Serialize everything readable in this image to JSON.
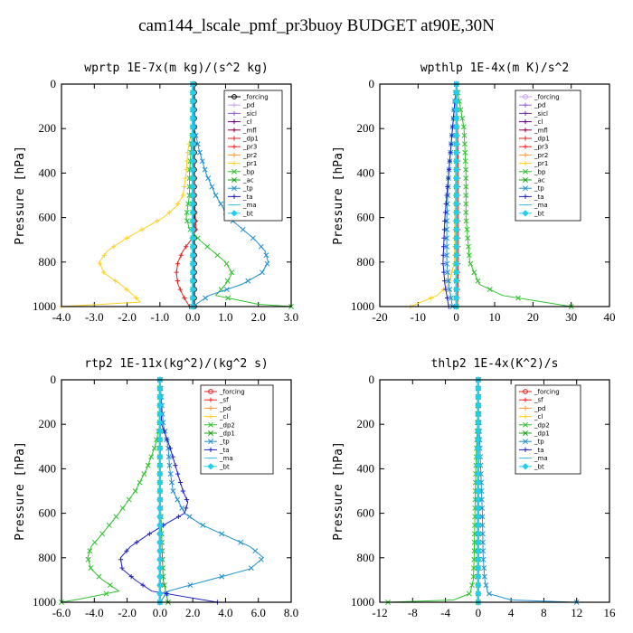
{
  "page": {
    "title": "cam144_lscale_pmf_pr3buoy  BUDGET at90E,30N"
  },
  "chart_data": [
    {
      "type": "line",
      "id": "wprtp",
      "title": "wprtp  1E-7x(m kg)/(s^2 kg)",
      "ylabel": "Pressure [hPa]",
      "xlim": [
        -4.0,
        3.0
      ],
      "xticks": [
        "-4.0",
        "-3.0",
        "-2.0",
        "-1.0",
        "0.0",
        "1.0",
        "2.0",
        "3.0"
      ],
      "ylim": [
        1000,
        0
      ],
      "yticks": [
        "0",
        "200",
        "400",
        "600",
        "800",
        "1000"
      ],
      "legend_position": "top-right",
      "series": [
        {
          "name": "_forcing",
          "color": "#000000",
          "marker": "o",
          "y": [
            0,
            100,
            200,
            300,
            400,
            500,
            600,
            700,
            800,
            900,
            1000
          ],
          "x": [
            0.05,
            0.05,
            0.05,
            0.05,
            0.05,
            0.05,
            0.05,
            0.05,
            0.05,
            0.05,
            0.05
          ]
        },
        {
          "name": "_pd",
          "color": "#c8a0e8",
          "marker": "+",
          "y": [
            0,
            500,
            1000
          ],
          "x": [
            0,
            0,
            0
          ]
        },
        {
          "name": "_sicl",
          "color": "#9060d0",
          "marker": "+",
          "y": [
            0,
            500,
            1000
          ],
          "x": [
            0,
            0,
            0
          ]
        },
        {
          "name": "_cl",
          "color": "#6a0080",
          "marker": "+",
          "y": [
            0,
            500,
            1000
          ],
          "x": [
            0,
            0,
            0
          ]
        },
        {
          "name": "_mfl",
          "color": "#a00050",
          "marker": "+",
          "y": [
            0,
            500,
            1000
          ],
          "x": [
            0,
            0,
            0
          ]
        },
        {
          "name": "_dp1",
          "color": "#e02020",
          "marker": "+",
          "y": [
            0,
            200,
            400,
            500,
            600,
            650,
            700,
            750,
            800,
            850,
            900,
            950,
            1000
          ],
          "x": [
            0,
            0.02,
            0.03,
            0.05,
            0.08,
            0.1,
            -0.05,
            -0.3,
            -0.45,
            -0.5,
            -0.45,
            -0.3,
            -0.1
          ]
        },
        {
          "name": "_pr3",
          "color": "#ff2020",
          "marker": "+",
          "y": [
            0,
            500,
            1000
          ],
          "x": [
            0,
            0.02,
            0
          ]
        },
        {
          "name": "_pr2",
          "color": "#ff9a30",
          "marker": "+",
          "y": [
            0,
            500,
            1000
          ],
          "x": [
            0,
            0,
            0
          ]
        },
        {
          "name": "_pr1",
          "color": "#ffd020",
          "marker": "+",
          "y": [
            0,
            200,
            260,
            300,
            400,
            500,
            550,
            600,
            650,
            700,
            750,
            800,
            850,
            900,
            950,
            980,
            1000
          ],
          "x": [
            0,
            0,
            -0.1,
            -0.15,
            -0.2,
            -0.3,
            -0.5,
            -0.9,
            -1.5,
            -2.1,
            -2.6,
            -2.85,
            -2.7,
            -2.2,
            -1.8,
            -1.6,
            -4.0
          ]
        },
        {
          "name": "_bp",
          "color": "#30c030",
          "marker": "x",
          "y": [
            0,
            200,
            300,
            400,
            500,
            550,
            600,
            650,
            700,
            750,
            800,
            850,
            900,
            950,
            990,
            1000
          ],
          "x": [
            0,
            0,
            -0.05,
            -0.1,
            -0.1,
            -0.15,
            -0.2,
            -0.1,
            0.2,
            0.6,
            1.0,
            1.2,
            1.0,
            0.7,
            2.0,
            3.0
          ]
        },
        {
          "name": "_ac",
          "color": "#20a020",
          "marker": "x",
          "y": [
            0,
            500,
            1000
          ],
          "x": [
            0,
            0,
            0
          ]
        },
        {
          "name": "_tp",
          "color": "#2090d0",
          "marker": "x",
          "y": [
            0,
            200,
            300,
            400,
            500,
            600,
            650,
            700,
            750,
            800,
            850,
            900,
            950,
            1000
          ],
          "x": [
            0,
            0.05,
            0.2,
            0.4,
            0.7,
            1.1,
            1.5,
            1.9,
            2.2,
            2.3,
            2.1,
            1.5,
            0.5,
            0
          ]
        },
        {
          "name": "_ta",
          "color": "#2020c0",
          "marker": "+",
          "y": [
            0,
            500,
            1000
          ],
          "x": [
            0,
            0,
            0
          ]
        },
        {
          "name": "_ma",
          "color": "#40c0e0",
          "marker": "-",
          "y": [
            0,
            500,
            1000
          ],
          "x": [
            0,
            0,
            0
          ]
        },
        {
          "name": "_bt",
          "color": "#20d0f0",
          "marker": "d",
          "y": [
            0,
            500,
            1000
          ],
          "x": [
            0,
            0,
            0
          ]
        }
      ]
    },
    {
      "type": "line",
      "id": "wpthlp",
      "title": "wpthlp  1E-4x(m K)/s^2",
      "ylabel": "Pressure [hPa]",
      "xlim": [
        -20,
        40
      ],
      "xticks": [
        "-20",
        "-10",
        "0",
        "10",
        "20",
        "30",
        "40"
      ],
      "ylim": [
        1000,
        0
      ],
      "yticks": [
        "0",
        "200",
        "400",
        "600",
        "800",
        "1000"
      ],
      "legend_position": "top-right",
      "series": [
        {
          "name": "_forcing",
          "color": "#c8a0e8",
          "marker": "o",
          "y": [
            0,
            500,
            1000
          ],
          "x": [
            0,
            0,
            0
          ]
        },
        {
          "name": "_pd",
          "color": "#9060d0",
          "marker": "+",
          "y": [
            0,
            500,
            1000
          ],
          "x": [
            0,
            0,
            0
          ]
        },
        {
          "name": "_sicl",
          "color": "#7030a0",
          "marker": "+",
          "y": [
            0,
            500,
            1000
          ],
          "x": [
            0,
            0,
            0
          ]
        },
        {
          "name": "_cl",
          "color": "#6a0080",
          "marker": "+",
          "y": [
            0,
            500,
            1000
          ],
          "x": [
            0,
            0,
            0
          ]
        },
        {
          "name": "_mfl",
          "color": "#a00050",
          "marker": "+",
          "y": [
            0,
            500,
            1000
          ],
          "x": [
            0,
            0,
            0
          ]
        },
        {
          "name": "_dp1",
          "color": "#e02020",
          "marker": "+",
          "y": [
            0,
            200,
            400,
            600,
            800,
            900,
            1000
          ],
          "x": [
            0,
            0.3,
            0.5,
            0.5,
            0.5,
            0.4,
            0.3
          ]
        },
        {
          "name": "_pr3",
          "color": "#ff2020",
          "marker": "+",
          "y": [
            0,
            500,
            1000
          ],
          "x": [
            0,
            0,
            0
          ]
        },
        {
          "name": "_pr2",
          "color": "#ff9a30",
          "marker": "+",
          "y": [
            0,
            500,
            1000
          ],
          "x": [
            0,
            0,
            0
          ]
        },
        {
          "name": "_pr1",
          "color": "#ffd020",
          "marker": "+",
          "y": [
            0,
            800,
            900,
            950,
            1000
          ],
          "x": [
            0,
            -0.5,
            -2,
            -5,
            -12
          ]
        },
        {
          "name": "_bp",
          "color": "#30c030",
          "marker": "x",
          "y": [
            0,
            200,
            400,
            600,
            800,
            900,
            950,
            1000
          ],
          "x": [
            0,
            2,
            2.5,
            2.5,
            3.5,
            6,
            12,
            30
          ]
        },
        {
          "name": "_ac",
          "color": "#20a020",
          "marker": "x",
          "y": [
            0,
            500,
            1000
          ],
          "x": [
            0,
            0,
            0
          ]
        },
        {
          "name": "_tp",
          "color": "#2090d0",
          "marker": "x",
          "y": [
            0,
            200,
            400,
            600,
            800,
            900,
            1000
          ],
          "x": [
            0,
            -1,
            -2,
            -2.5,
            -2.5,
            -2,
            -1
          ]
        },
        {
          "name": "_ta",
          "color": "#2020c0",
          "marker": "+",
          "y": [
            0,
            200,
            400,
            600,
            800,
            900,
            1000
          ],
          "x": [
            0,
            -1,
            -2,
            -3,
            -3.5,
            -3,
            -2
          ]
        },
        {
          "name": "_ma",
          "color": "#40c0e0",
          "marker": "-",
          "y": [
            0,
            500,
            1000
          ],
          "x": [
            0,
            0,
            0
          ]
        },
        {
          "name": "_bt",
          "color": "#20d0f0",
          "marker": "d",
          "y": [
            0,
            500,
            1000
          ],
          "x": [
            0,
            0,
            0
          ]
        }
      ]
    },
    {
      "type": "line",
      "id": "rtp2",
      "title": "rtp2  1E-11x(kg^2)/(kg^2 s)",
      "ylabel": "Pressure [hPa]",
      "xlim": [
        -6.0,
        8.0
      ],
      "xticks": [
        "-6.0",
        "-4.0",
        "-2.0",
        "0.0",
        "2.0",
        "4.0",
        "6.0",
        "8.0"
      ],
      "ylim": [
        1000,
        0
      ],
      "yticks": [
        "0",
        "200",
        "400",
        "600",
        "800",
        "1000"
      ],
      "legend_position": "top-right",
      "series": [
        {
          "name": "_forcing",
          "color": "#e02020",
          "marker": "o",
          "y": [
            0,
            500,
            1000
          ],
          "x": [
            0,
            0,
            0
          ]
        },
        {
          "name": "_sf",
          "color": "#ff2020",
          "marker": "+",
          "y": [
            0,
            500,
            1000
          ],
          "x": [
            0,
            0,
            0
          ]
        },
        {
          "name": "_pd",
          "color": "#ff9a30",
          "marker": "+",
          "y": [
            0,
            500,
            1000
          ],
          "x": [
            0,
            0,
            0
          ]
        },
        {
          "name": "_cl",
          "color": "#ffd020",
          "marker": "+",
          "y": [
            0,
            500,
            1000
          ],
          "x": [
            0,
            0,
            0
          ]
        },
        {
          "name": "_dp2",
          "color": "#30c030",
          "marker": "x",
          "y": [
            0,
            200,
            300,
            400,
            500,
            600,
            700,
            750,
            800,
            850,
            900,
            950,
            980,
            1000
          ],
          "x": [
            0,
            0,
            -0.3,
            -0.8,
            -1.5,
            -2.5,
            -3.6,
            -4.2,
            -4.4,
            -4.2,
            -3.5,
            -2.5,
            -4.5,
            -6.0
          ]
        },
        {
          "name": "_dp1",
          "color": "#20a020",
          "marker": "x",
          "y": [
            0,
            500,
            900,
            1000
          ],
          "x": [
            0,
            0,
            0.2,
            0.5
          ]
        },
        {
          "name": "_tp",
          "color": "#2090d0",
          "marker": "x",
          "y": [
            0,
            200,
            300,
            400,
            500,
            600,
            650,
            700,
            750,
            800,
            850,
            900,
            950,
            1000
          ],
          "x": [
            0,
            0.2,
            0.5,
            0.6,
            0.8,
            1.5,
            2.5,
            4.0,
            5.5,
            6.3,
            5.5,
            3.0,
            0.5,
            0
          ]
        },
        {
          "name": "_ta",
          "color": "#2020c0",
          "marker": "+",
          "y": [
            0,
            200,
            300,
            400,
            500,
            550,
            600,
            650,
            700,
            750,
            800,
            850,
            900,
            950,
            1000
          ],
          "x": [
            0,
            0.1,
            0.6,
            1.0,
            1.4,
            1.7,
            1.5,
            0.3,
            -0.8,
            -1.8,
            -2.4,
            -2.3,
            -1.5,
            -0.5,
            3.5
          ]
        },
        {
          "name": "_ma",
          "color": "#40c0e0",
          "marker": "-",
          "y": [
            0,
            500,
            1000
          ],
          "x": [
            0,
            0,
            0
          ]
        },
        {
          "name": "_bt",
          "color": "#20d0f0",
          "marker": "d",
          "y": [
            0,
            500,
            1000
          ],
          "x": [
            0,
            0,
            0
          ]
        }
      ]
    },
    {
      "type": "line",
      "id": "thlp2",
      "title": "thlp2  1E-4x(K^2)/s",
      "ylabel": "Pressure [hPa]",
      "xlim": [
        -12,
        16
      ],
      "xticks": [
        "-12",
        "-8",
        "-4",
        "0",
        "4",
        "8",
        "12",
        "16"
      ],
      "ylim": [
        1000,
        0
      ],
      "yticks": [
        "0",
        "200",
        "400",
        "600",
        "800",
        "1000"
      ],
      "legend_position": "top-right",
      "series": [
        {
          "name": "_forcing",
          "color": "#e02020",
          "marker": "o",
          "y": [
            0,
            500,
            1000
          ],
          "x": [
            0,
            0,
            0
          ]
        },
        {
          "name": "_sf",
          "color": "#ff2020",
          "marker": "+",
          "y": [
            0,
            500,
            1000
          ],
          "x": [
            0,
            0,
            0
          ]
        },
        {
          "name": "_pd",
          "color": "#ff9a30",
          "marker": "+",
          "y": [
            0,
            500,
            1000
          ],
          "x": [
            0,
            0,
            0
          ]
        },
        {
          "name": "_cl",
          "color": "#ffd020",
          "marker": "+",
          "y": [
            0,
            500,
            1000
          ],
          "x": [
            0,
            0,
            0
          ]
        },
        {
          "name": "_dp2",
          "color": "#30c030",
          "marker": "x",
          "y": [
            0,
            200,
            400,
            600,
            800,
            900,
            960,
            990,
            1000
          ],
          "x": [
            0,
            -0.1,
            -0.3,
            -0.4,
            -0.5,
            -0.6,
            -1.0,
            -3.0,
            -11.0
          ]
        },
        {
          "name": "_dp1",
          "color": "#20a020",
          "marker": "x",
          "y": [
            0,
            500,
            1000
          ],
          "x": [
            0,
            0,
            0
          ]
        },
        {
          "name": "_tp",
          "color": "#2090d0",
          "marker": "x",
          "y": [
            0,
            200,
            400,
            600,
            800,
            900,
            960,
            990,
            1000
          ],
          "x": [
            0,
            0.1,
            0.3,
            0.5,
            0.6,
            0.8,
            1.2,
            4.0,
            12.0
          ]
        },
        {
          "name": "_ta",
          "color": "#2020c0",
          "marker": "+",
          "y": [
            0,
            500,
            1000
          ],
          "x": [
            0,
            0,
            0
          ]
        },
        {
          "name": "_ma",
          "color": "#40c0e0",
          "marker": "-",
          "y": [
            0,
            500,
            1000
          ],
          "x": [
            0,
            0,
            0
          ]
        },
        {
          "name": "_bt",
          "color": "#20d0f0",
          "marker": "d",
          "y": [
            0,
            500,
            1000
          ],
          "x": [
            0,
            0,
            0
          ]
        }
      ]
    }
  ]
}
